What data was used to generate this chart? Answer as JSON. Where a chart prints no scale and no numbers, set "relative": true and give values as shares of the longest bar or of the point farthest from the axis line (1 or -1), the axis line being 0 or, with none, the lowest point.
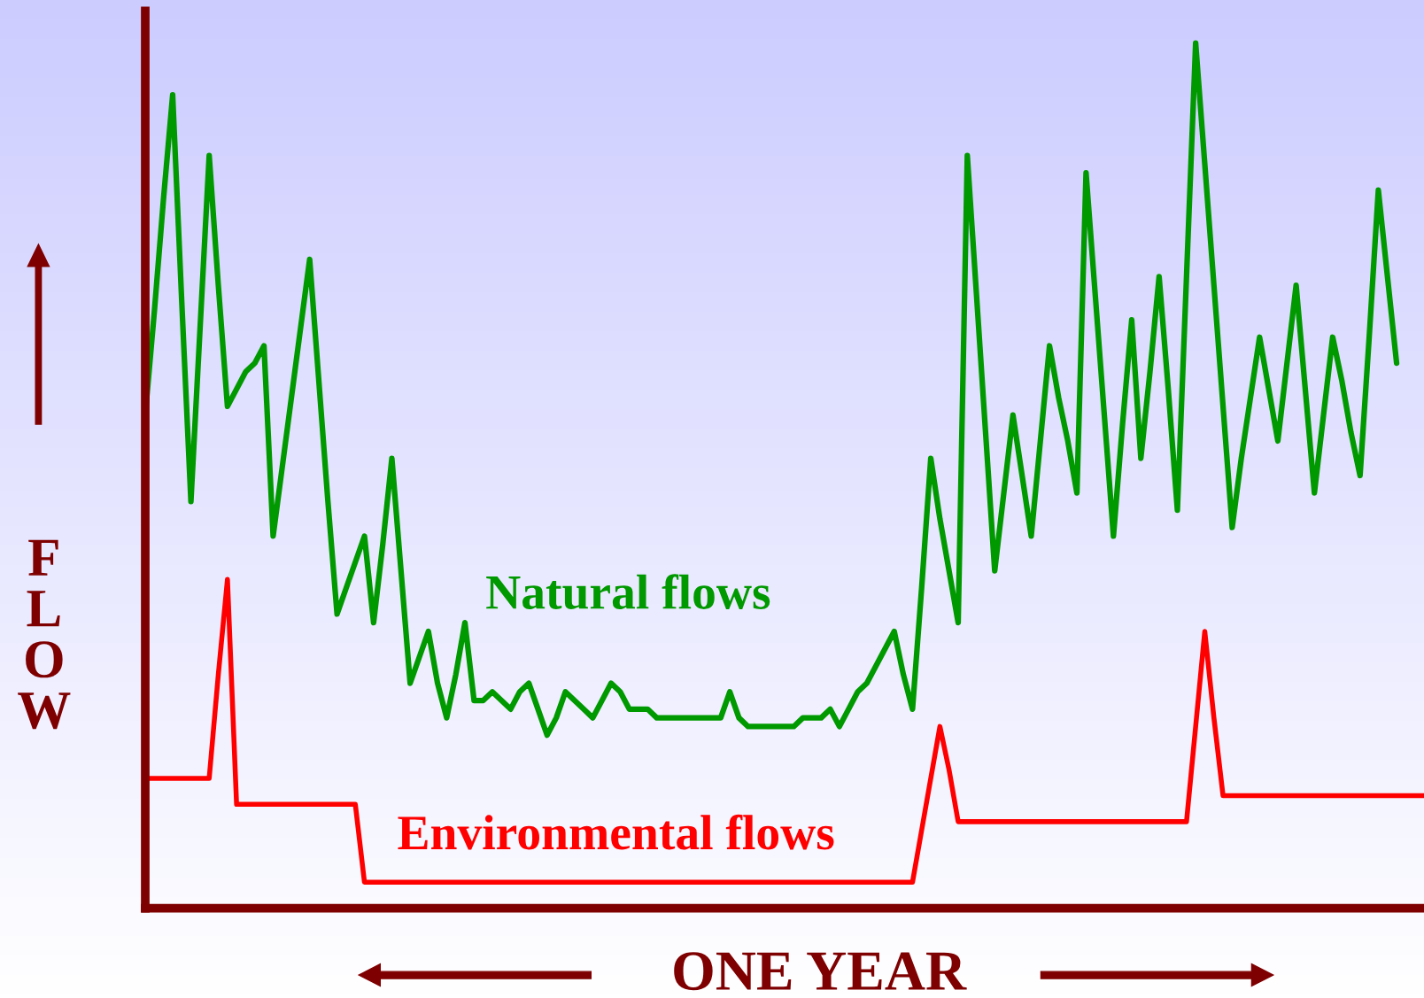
{
  "chart_data": {
    "type": "line",
    "relative": true,
    "xlabel": "ONE YEAR",
    "ylabel": "FLOW",
    "legend": false,
    "marker": "none",
    "line_style": "solid",
    "categories": [
      null,
      null,
      null,
      null,
      null,
      null,
      null,
      null,
      null,
      null,
      null,
      null,
      null,
      null,
      null,
      null,
      null,
      null,
      null,
      null,
      null,
      null,
      null,
      null,
      null,
      null,
      null,
      null,
      null,
      null,
      null,
      null,
      null,
      null,
      null,
      null,
      null,
      null,
      null,
      null,
      null,
      null,
      null,
      null,
      null,
      null,
      null,
      null,
      null,
      null,
      null,
      null,
      null,
      null,
      null,
      null,
      null,
      null,
      null,
      null,
      null,
      null,
      null,
      null,
      null,
      null,
      null,
      null,
      null,
      null,
      null,
      null,
      null,
      null,
      null,
      null,
      null,
      null,
      null,
      null,
      null,
      null,
      null,
      null,
      null,
      null,
      null,
      null,
      null,
      null,
      null,
      null,
      null,
      null,
      null,
      null,
      null,
      null,
      null,
      null,
      null,
      null,
      null,
      null,
      null,
      null,
      null,
      null,
      null,
      null,
      null,
      null,
      null,
      null,
      null,
      null,
      null,
      null,
      null,
      null,
      null,
      null,
      null,
      null,
      null,
      null,
      null,
      null,
      null,
      null,
      null,
      null,
      null,
      null,
      null,
      null,
      null,
      null,
      null,
      null,
      null
    ],
    "series": [
      {
        "name": "Natural flows",
        "color": "#009900",
        "values": [
          0.57,
          0.69,
          0.82,
          0.94,
          0.7,
          0.47,
          0.67,
          0.87,
          0.72,
          0.58,
          0.6,
          0.62,
          0.63,
          0.65,
          0.43,
          0.51,
          0.59,
          0.67,
          0.75,
          0.61,
          0.47,
          0.34,
          0.37,
          0.4,
          0.43,
          0.33,
          0.42,
          0.52,
          0.39,
          0.26,
          0.29,
          0.32,
          0.26,
          0.22,
          0.27,
          0.33,
          0.24,
          0.24,
          0.25,
          0.24,
          0.23,
          0.25,
          0.26,
          0.23,
          0.2,
          0.22,
          0.25,
          0.24,
          0.23,
          0.22,
          0.24,
          0.26,
          0.25,
          0.23,
          0.23,
          0.23,
          0.22,
          0.22,
          0.22,
          0.22,
          0.22,
          0.22,
          0.22,
          0.22,
          0.25,
          0.22,
          0.21,
          0.21,
          0.21,
          0.21,
          0.21,
          0.21,
          0.22,
          0.22,
          0.22,
          0.23,
          0.21,
          0.23,
          0.25,
          0.26,
          0.28,
          0.3,
          0.32,
          0.27,
          0.23,
          0.37,
          0.52,
          0.45,
          0.39,
          0.33,
          0.87,
          0.71,
          0.55,
          0.39,
          0.48,
          0.57,
          0.5,
          0.43,
          0.54,
          0.65,
          0.59,
          0.54,
          0.48,
          0.85,
          0.71,
          0.57,
          0.43,
          0.56,
          0.68,
          0.52,
          0.62,
          0.73,
          0.6,
          0.46,
          0.73,
          1.0,
          0.86,
          0.72,
          0.58,
          0.44,
          0.52,
          0.59,
          0.66,
          0.6,
          0.54,
          0.63,
          0.72,
          0.6,
          0.48,
          0.57,
          0.66,
          0.61,
          0.55,
          0.5,
          0.66,
          0.83,
          0.73,
          0.63,
          null,
          null,
          null
        ]
      },
      {
        "name": "Environmental flows",
        "color": "#ff0000",
        "values": [
          0.15,
          0.15,
          0.15,
          0.15,
          0.15,
          0.15,
          0.15,
          0.15,
          0.27,
          0.38,
          0.12,
          0.12,
          0.12,
          0.12,
          0.12,
          0.12,
          0.12,
          0.12,
          0.12,
          0.12,
          0.12,
          0.12,
          0.12,
          0.12,
          0.03,
          0.03,
          0.03,
          0.03,
          0.03,
          0.03,
          0.03,
          0.03,
          0.03,
          0.03,
          0.03,
          0.03,
          0.03,
          0.03,
          0.03,
          0.03,
          0.03,
          0.03,
          0.03,
          0.03,
          0.03,
          0.03,
          0.03,
          0.03,
          0.03,
          0.03,
          0.03,
          0.03,
          0.03,
          0.03,
          0.03,
          0.03,
          0.03,
          0.03,
          0.03,
          0.03,
          0.03,
          0.03,
          0.03,
          0.03,
          0.03,
          0.03,
          0.03,
          0.03,
          0.03,
          0.03,
          0.03,
          0.03,
          0.03,
          0.03,
          0.03,
          0.03,
          0.03,
          0.03,
          0.03,
          0.03,
          0.03,
          0.03,
          0.03,
          0.03,
          0.03,
          0.09,
          0.15,
          0.21,
          0.16,
          0.1,
          0.1,
          0.1,
          0.1,
          0.1,
          0.1,
          0.1,
          0.1,
          0.1,
          0.1,
          0.1,
          0.1,
          0.1,
          0.1,
          0.1,
          0.1,
          0.1,
          0.1,
          0.1,
          0.1,
          0.1,
          0.1,
          0.1,
          0.1,
          0.1,
          0.1,
          0.21,
          0.32,
          0.22,
          0.13,
          0.13,
          0.13,
          0.13,
          0.13,
          0.13,
          0.13,
          0.13,
          0.13,
          0.13,
          0.13,
          0.13,
          0.13,
          0.13,
          0.13,
          0.13,
          0.13,
          0.13,
          0.13,
          0.13,
          0.13,
          0.13,
          0.13
        ]
      }
    ]
  }
}
